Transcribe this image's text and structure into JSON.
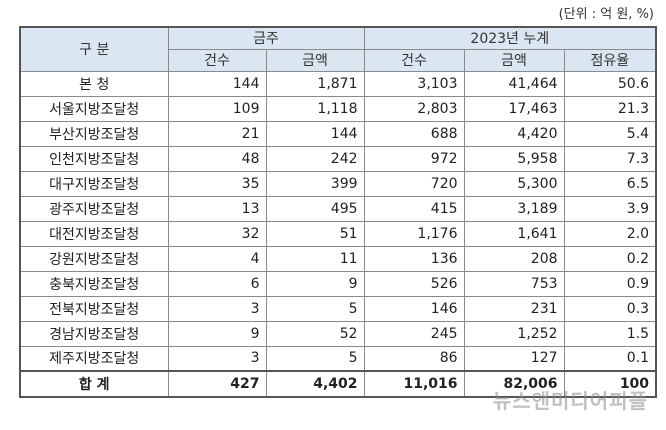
{
  "unit_note": "(단위 : 억 원, %)",
  "header": {
    "category": "구 분",
    "group1": "금주",
    "group2": "2023년 누계",
    "sub": [
      "건수",
      "금액",
      "건수",
      "금액",
      "점유율"
    ]
  },
  "rows": [
    {
      "name": "본 청",
      "c1": "144",
      "a1": "1,871",
      "c2": "3,103",
      "a2": "41,464",
      "share": "50.6"
    },
    {
      "name": "서울지방조달청",
      "c1": "109",
      "a1": "1,118",
      "c2": "2,803",
      "a2": "17,463",
      "share": "21.3"
    },
    {
      "name": "부산지방조달청",
      "c1": "21",
      "a1": "144",
      "c2": "688",
      "a2": "4,420",
      "share": "5.4"
    },
    {
      "name": "인천지방조달청",
      "c1": "48",
      "a1": "242",
      "c2": "972",
      "a2": "5,958",
      "share": "7.3"
    },
    {
      "name": "대구지방조달청",
      "c1": "35",
      "a1": "399",
      "c2": "720",
      "a2": "5,300",
      "share": "6.5"
    },
    {
      "name": "광주지방조달청",
      "c1": "13",
      "a1": "495",
      "c2": "415",
      "a2": "3,189",
      "share": "3.9"
    },
    {
      "name": "대전지방조달청",
      "c1": "32",
      "a1": "51",
      "c2": "1,176",
      "a2": "1,641",
      "share": "2.0"
    },
    {
      "name": "강원지방조달청",
      "c1": "4",
      "a1": "11",
      "c2": "136",
      "a2": "208",
      "share": "0.2"
    },
    {
      "name": "충북지방조달청",
      "c1": "6",
      "a1": "9",
      "c2": "526",
      "a2": "753",
      "share": "0.9"
    },
    {
      "name": "전북지방조달청",
      "c1": "3",
      "a1": "5",
      "c2": "146",
      "a2": "231",
      "share": "0.3"
    },
    {
      "name": "경남지방조달청",
      "c1": "9",
      "a1": "52",
      "c2": "245",
      "a2": "1,252",
      "share": "1.5"
    },
    {
      "name": "제주지방조달청",
      "c1": "3",
      "a1": "5",
      "c2": "86",
      "a2": "127",
      "share": "0.1"
    }
  ],
  "total": {
    "name": "합 계",
    "c1": "427",
    "a1": "4,402",
    "c2": "11,016",
    "a2": "82,006",
    "share": "100"
  },
  "watermark": "뉴스앤미디어피플"
}
